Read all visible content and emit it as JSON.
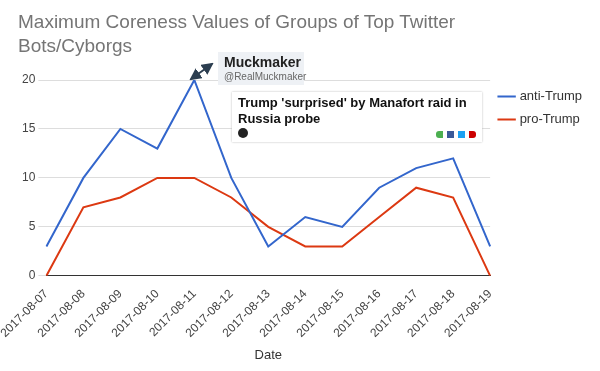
{
  "chart_data": {
    "type": "line",
    "title": "Maximum Coreness Values of Groups of Top Twitter Bots/Cyborgs",
    "x_label": "Date",
    "categories": [
      "2017-08-07",
      "2017-08-08",
      "2017-08-09",
      "2017-08-10",
      "2017-08-11",
      "2017-08-12",
      "2017-08-13",
      "2017-08-14",
      "2017-08-15",
      "2017-08-16",
      "2017-08-17",
      "2017-08-18",
      "2017-08-19"
    ],
    "series": [
      {
        "name": "anti-Trump",
        "color": "#3366cc",
        "values": [
          3,
          10,
          15,
          13,
          20,
          10,
          3,
          6,
          5,
          9,
          11,
          12,
          3
        ]
      },
      {
        "name": "pro-Trump",
        "color": "#dc3912",
        "values": [
          0,
          7,
          8,
          10,
          10,
          8,
          5,
          3,
          3,
          6,
          9,
          8,
          0
        ]
      }
    ],
    "ylim": [
      0,
      20
    ],
    "yticks": [
      0,
      5,
      10,
      15,
      20
    ],
    "grid": true,
    "legend": "right",
    "annotations": [
      {
        "title": "Muckmaker",
        "subtitle": "@RealMuckmaker"
      },
      {
        "title": "Trump 'surprised' by Manafort raid in Russia probe"
      }
    ]
  }
}
